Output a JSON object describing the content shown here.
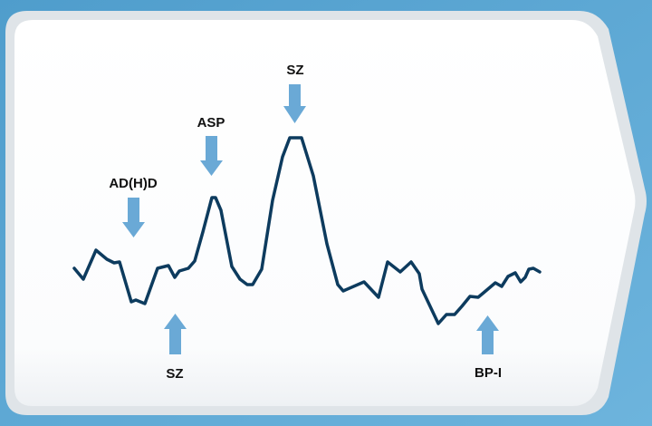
{
  "colors": {
    "background_blue": "#5ba6d3",
    "panel_edge": "#e3e8ec",
    "panel_fill": "#ffffff",
    "curve": "#0d3b5e",
    "arrow": "#6aa9d6",
    "label_text": "#111111"
  },
  "annotations": [
    {
      "label": "AD(H)D",
      "direction": "down"
    },
    {
      "label": "ASP",
      "direction": "down"
    },
    {
      "label": "SZ",
      "direction": "down"
    },
    {
      "label": "SZ",
      "direction": "up"
    },
    {
      "label": "BP-I",
      "direction": "up"
    }
  ]
}
